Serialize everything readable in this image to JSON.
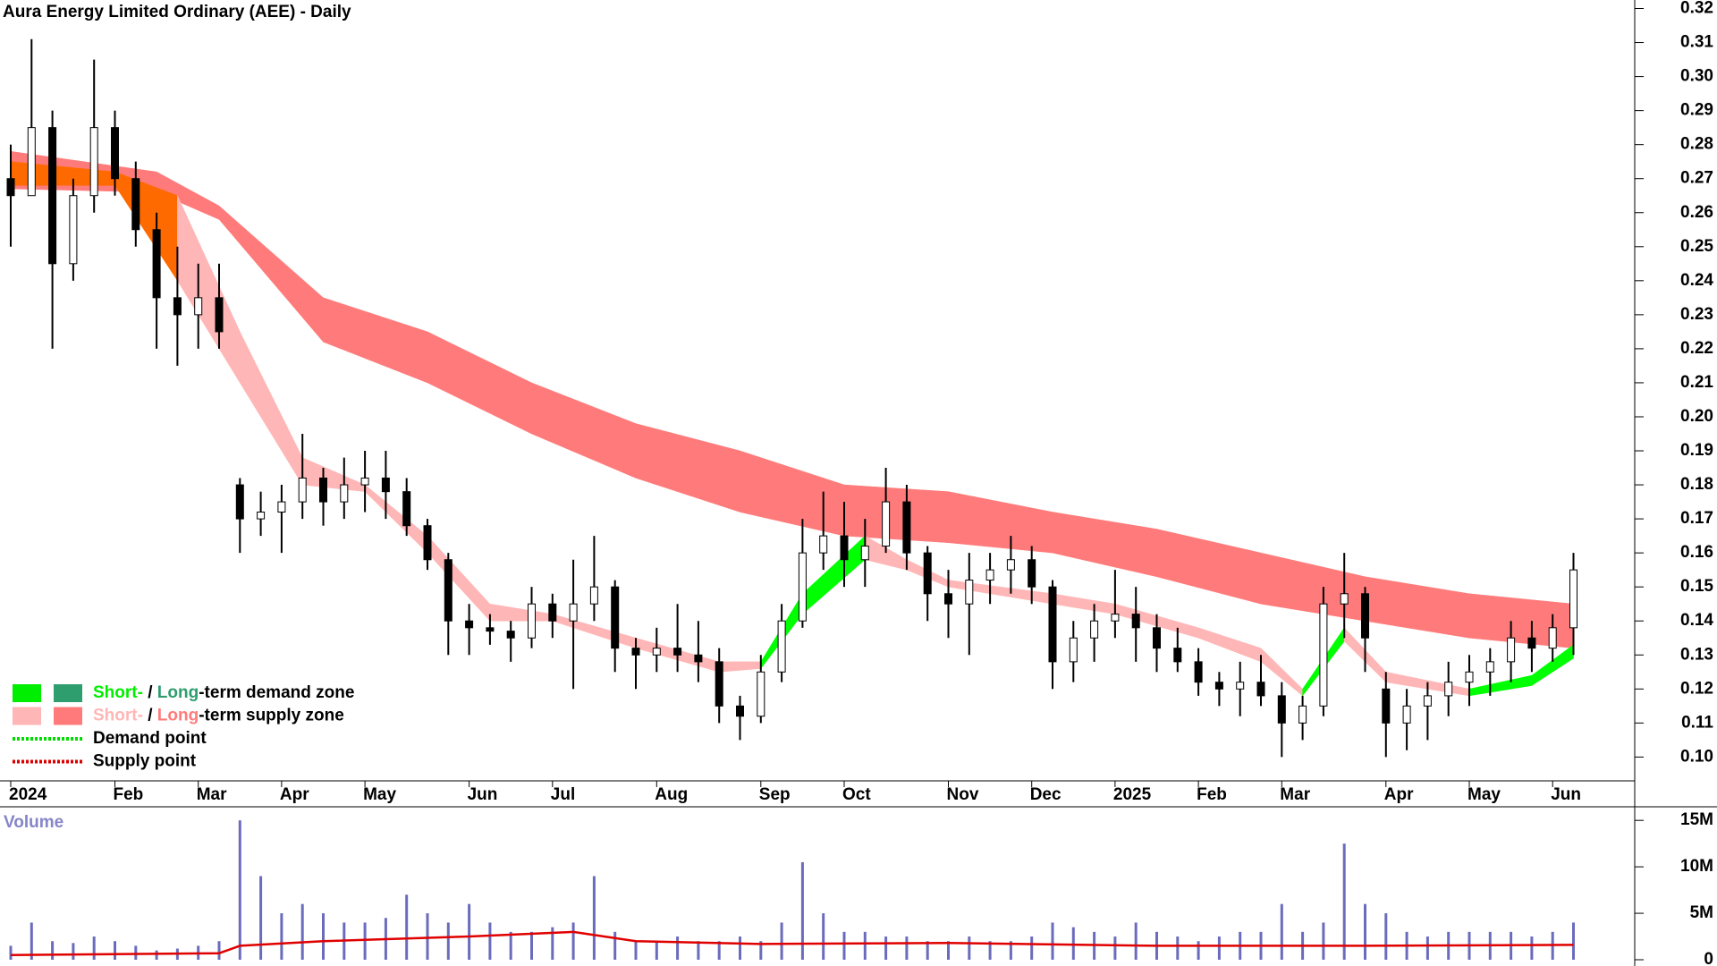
{
  "chart_data": [
    {
      "type": "candlestick",
      "title": "Aura Energy Limited Ordinary (AEE) - Daily",
      "open": [
        0.27,
        0.265,
        0.285,
        0.245,
        0.265,
        0.285,
        0.27,
        0.255,
        0.235,
        0.23,
        0.235,
        0.18,
        0.17,
        0.172,
        0.175,
        0.182,
        0.175,
        0.18,
        0.182,
        0.178,
        0.168,
        0.158,
        0.14,
        0.138,
        0.137,
        0.135,
        0.145,
        0.14,
        0.145,
        0.15,
        0.132,
        0.13,
        0.132,
        0.13,
        0.128,
        0.115,
        0.112,
        0.125,
        0.14,
        0.16,
        0.165,
        0.158,
        0.162,
        0.175,
        0.16,
        0.148,
        0.145,
        0.152,
        0.155,
        0.158,
        0.15,
        0.128,
        0.135,
        0.14,
        0.142,
        0.138,
        0.132,
        0.128,
        0.122,
        0.12,
        0.122,
        0.118,
        0.11,
        0.115,
        0.145,
        0.148,
        0.12,
        0.11,
        0.115,
        0.118,
        0.122,
        0.125,
        0.128,
        0.135,
        0.132,
        0.138
      ],
      "high": [
        0.28,
        0.311,
        0.29,
        0.27,
        0.305,
        0.29,
        0.275,
        0.26,
        0.25,
        0.245,
        0.245,
        0.182,
        0.178,
        0.18,
        0.195,
        0.185,
        0.188,
        0.19,
        0.19,
        0.182,
        0.17,
        0.16,
        0.145,
        0.142,
        0.14,
        0.15,
        0.148,
        0.158,
        0.165,
        0.152,
        0.135,
        0.138,
        0.145,
        0.14,
        0.132,
        0.118,
        0.13,
        0.145,
        0.17,
        0.178,
        0.175,
        0.17,
        0.185,
        0.18,
        0.162,
        0.155,
        0.16,
        0.16,
        0.165,
        0.162,
        0.152,
        0.14,
        0.145,
        0.155,
        0.15,
        0.142,
        0.138,
        0.132,
        0.125,
        0.128,
        0.13,
        0.122,
        0.118,
        0.15,
        0.16,
        0.15,
        0.125,
        0.12,
        0.122,
        0.128,
        0.13,
        0.132,
        0.14,
        0.14,
        0.142,
        0.16
      ],
      "low": [
        0.25,
        0.265,
        0.22,
        0.24,
        0.26,
        0.265,
        0.25,
        0.22,
        0.215,
        0.22,
        0.22,
        0.16,
        0.165,
        0.16,
        0.17,
        0.168,
        0.17,
        0.172,
        0.17,
        0.165,
        0.155,
        0.13,
        0.13,
        0.133,
        0.128,
        0.132,
        0.135,
        0.12,
        0.14,
        0.125,
        0.12,
        0.125,
        0.125,
        0.122,
        0.11,
        0.105,
        0.11,
        0.122,
        0.138,
        0.155,
        0.15,
        0.15,
        0.16,
        0.155,
        0.14,
        0.135,
        0.13,
        0.145,
        0.148,
        0.145,
        0.12,
        0.122,
        0.128,
        0.135,
        0.128,
        0.125,
        0.125,
        0.118,
        0.115,
        0.112,
        0.115,
        0.1,
        0.105,
        0.112,
        0.135,
        0.125,
        0.1,
        0.102,
        0.105,
        0.112,
        0.115,
        0.118,
        0.122,
        0.125,
        0.128,
        0.13
      ],
      "close": [
        0.265,
        0.285,
        0.245,
        0.265,
        0.285,
        0.27,
        0.255,
        0.235,
        0.23,
        0.235,
        0.225,
        0.17,
        0.172,
        0.175,
        0.182,
        0.175,
        0.18,
        0.182,
        0.178,
        0.168,
        0.158,
        0.14,
        0.138,
        0.137,
        0.135,
        0.145,
        0.14,
        0.145,
        0.15,
        0.132,
        0.13,
        0.132,
        0.13,
        0.128,
        0.115,
        0.112,
        0.125,
        0.14,
        0.16,
        0.165,
        0.158,
        0.162,
        0.175,
        0.16,
        0.148,
        0.145,
        0.152,
        0.155,
        0.158,
        0.15,
        0.128,
        0.135,
        0.14,
        0.142,
        0.138,
        0.132,
        0.128,
        0.122,
        0.12,
        0.122,
        0.118,
        0.11,
        0.115,
        0.145,
        0.148,
        0.135,
        0.11,
        0.115,
        0.118,
        0.122,
        0.125,
        0.128,
        0.135,
        0.132,
        0.138,
        0.155
      ],
      "long_band": {
        "x": [
          0,
          7,
          10,
          15,
          20,
          25,
          30,
          35,
          40,
          45,
          50,
          55,
          60,
          65,
          70,
          75
        ],
        "upper": [
          0.278,
          0.272,
          0.262,
          0.235,
          0.225,
          0.21,
          0.198,
          0.19,
          0.18,
          0.178,
          0.172,
          0.167,
          0.16,
          0.153,
          0.148,
          0.145
        ],
        "lower": [
          0.267,
          0.266,
          0.258,
          0.222,
          0.21,
          0.195,
          0.182,
          0.172,
          0.165,
          0.163,
          0.16,
          0.153,
          0.145,
          0.14,
          0.135,
          0.132
        ],
        "color": "#ff7b7b"
      },
      "short_band": {
        "x": [
          0,
          5,
          8,
          11,
          14,
          17,
          20,
          23,
          26,
          30,
          34,
          36,
          38,
          41,
          43,
          45,
          50,
          53,
          57,
          60,
          62,
          64,
          66,
          70,
          73,
          75
        ],
        "upper": [
          0.275,
          0.272,
          0.265,
          0.225,
          0.188,
          0.18,
          0.165,
          0.145,
          0.142,
          0.135,
          0.128,
          0.128,
          0.148,
          0.165,
          0.158,
          0.152,
          0.148,
          0.145,
          0.138,
          0.132,
          0.12,
          0.138,
          0.125,
          0.12,
          0.124,
          0.133
        ],
        "lower": [
          0.268,
          0.268,
          0.24,
          0.21,
          0.18,
          0.178,
          0.16,
          0.14,
          0.14,
          0.132,
          0.125,
          0.126,
          0.142,
          0.158,
          0.155,
          0.15,
          0.145,
          0.142,
          0.135,
          0.128,
          0.118,
          0.134,
          0.122,
          0.118,
          0.121,
          0.129
        ],
        "color": "#ffb6b6",
        "demand_color": "#00ff00",
        "overlap_color": "#ff6a00"
      },
      "ylim": [
        0.093,
        0.3225
      ],
      "yticks": [
        {
          "value": 0.1,
          "label": "0.10"
        },
        0.11,
        0.12,
        0.13,
        0.14,
        0.15,
        0.16,
        0.17,
        0.18,
        0.19,
        {
          "value": 0.2,
          "label": "0.20"
        },
        0.21,
        0.22,
        0.23,
        0.24,
        0.25,
        0.26,
        0.27,
        0.28,
        0.29,
        {
          "value": 0.3,
          "label": "0.30"
        },
        0.31,
        0.32
      ],
      "xticks": [
        {
          "value": 0,
          "label": "2024"
        },
        {
          "value": 5,
          "label": "Feb"
        },
        {
          "value": 9,
          "label": "Mar"
        },
        {
          "value": 13,
          "label": "Apr"
        },
        {
          "value": 17,
          "label": "May"
        },
        {
          "value": 22,
          "label": "Jun"
        },
        {
          "value": 26,
          "label": "Jul"
        },
        {
          "value": 31,
          "label": "Aug"
        },
        {
          "value": 36,
          "label": "Sep"
        },
        {
          "value": 40,
          "label": "Oct"
        },
        {
          "value": 45,
          "label": "Nov"
        },
        {
          "value": 49,
          "label": "Dec"
        },
        {
          "value": 53,
          "label": "2025"
        },
        {
          "value": 57,
          "label": "Feb"
        },
        {
          "value": 61,
          "label": "Mar"
        },
        {
          "value": 66,
          "label": "Apr"
        },
        {
          "value": 70,
          "label": "May"
        },
        {
          "value": 74,
          "label": "Jun"
        }
      ],
      "legend": [
        {
          "parts": [
            "Short-",
            " / ",
            "Long",
            "-term demand zone"
          ],
          "colors": [
            "#00ee00",
            "#2e9e6e"
          ],
          "style": "box"
        },
        {
          "parts": [
            "Short-",
            " / ",
            "Long",
            "-term supply zone"
          ],
          "colors": [
            "#ffb6b6",
            "#ff7b7b"
          ],
          "style": "box"
        },
        {
          "parts": [
            "Demand point"
          ],
          "colors": [
            "#00dd00"
          ],
          "style": "dots"
        },
        {
          "parts": [
            "Supply point"
          ],
          "colors": [
            "#dd0000"
          ],
          "style": "dots"
        }
      ]
    },
    {
      "type": "bar",
      "title": "Volume",
      "color": "#6b6bbd",
      "values": [
        1500000,
        4000000,
        2000000,
        1800000,
        2500000,
        2000000,
        1500000,
        1000000,
        1200000,
        1500000,
        2000000,
        15000000,
        9000000,
        5000000,
        6000000,
        5000000,
        4000000,
        4000000,
        4500000,
        7000000,
        5000000,
        4000000,
        6000000,
        4000000,
        3000000,
        3000000,
        3500000,
        4000000,
        9000000,
        3000000,
        2000000,
        2000000,
        2500000,
        2000000,
        2000000,
        2500000,
        2000000,
        4000000,
        10500000,
        5000000,
        3000000,
        3000000,
        2500000,
        2500000,
        2000000,
        2000000,
        2500000,
        2000000,
        2000000,
        2500000,
        4000000,
        3500000,
        3000000,
        2500000,
        4000000,
        3000000,
        2500000,
        2000000,
        2500000,
        3000000,
        3000000,
        6000000,
        3000000,
        4000000,
        12500000,
        6000000,
        5000000,
        3000000,
        2500000,
        3000000,
        3000000,
        3000000,
        3000000,
        2500000,
        3000000,
        4000000
      ],
      "average": {
        "x": [
          0,
          10,
          11,
          15,
          22,
          27,
          30,
          36,
          45,
          55,
          65,
          75
        ],
        "values": [
          500000,
          700000,
          1500000,
          2000000,
          2500000,
          3000000,
          2000000,
          1700000,
          1800000,
          1500000,
          1500000,
          1600000
        ],
        "color": "#e00000"
      },
      "ylim": [
        0,
        15500000
      ],
      "yticks": [
        0,
        {
          "value": 5000000,
          "label": "5M"
        },
        {
          "value": 10000000,
          "label": "10M"
        },
        {
          "value": 15000000,
          "label": "15M"
        }
      ]
    }
  ]
}
